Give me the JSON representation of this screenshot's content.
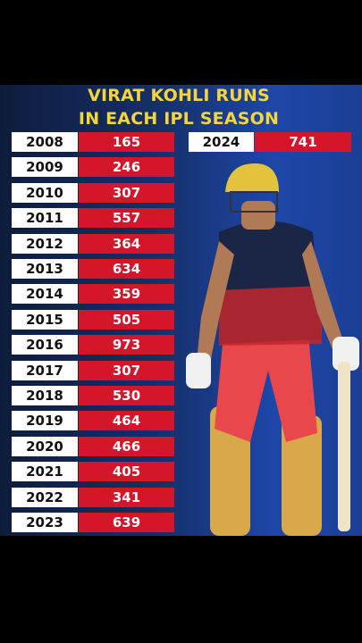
{
  "title": [
    "VIRAT KOHLI RUNS",
    "IN EACH IPL SEASON"
  ],
  "table": {
    "rows": [
      [
        "2008",
        165
      ],
      [
        "2009",
        246
      ],
      [
        "2010",
        307
      ],
      [
        "2011",
        557
      ],
      [
        "2012",
        364
      ],
      [
        "2013",
        634
      ],
      [
        "2014",
        359
      ],
      [
        "2015",
        505
      ],
      [
        "2016",
        973
      ],
      [
        "2017",
        307
      ],
      [
        "2018",
        530
      ],
      [
        "2019",
        464
      ],
      [
        "2020",
        466
      ],
      [
        "2021",
        405
      ],
      [
        "2022",
        341
      ],
      [
        "2023",
        639
      ]
    ]
  },
  "highlight": [
    "2024",
    741
  ]
}
